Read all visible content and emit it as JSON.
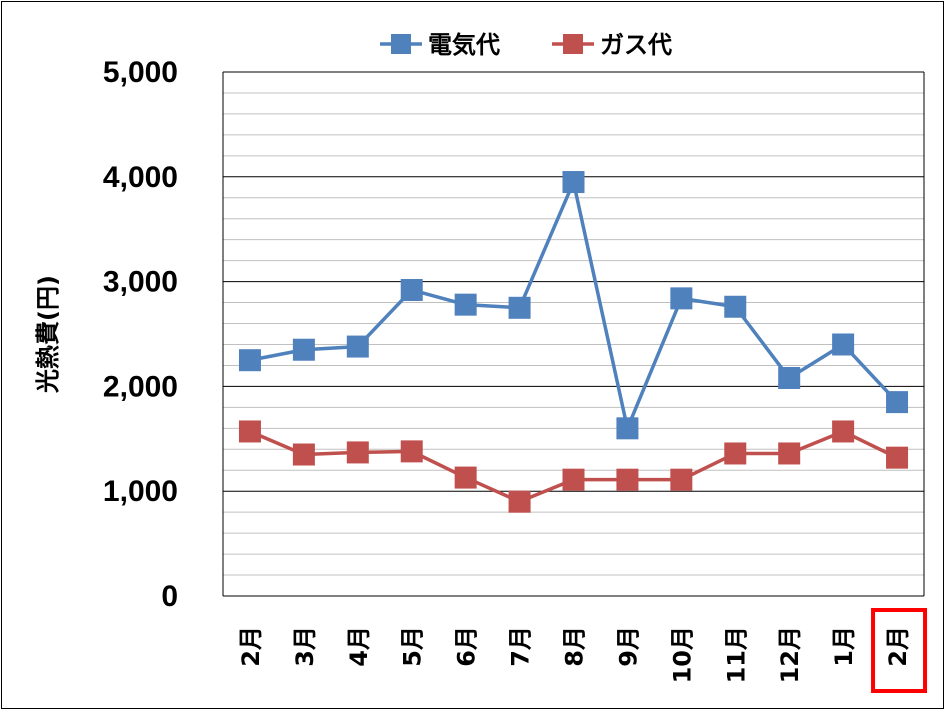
{
  "chart_data": {
    "type": "line",
    "title": "",
    "ylabel": "光熱費(円)",
    "xlabel": "",
    "ylim": [
      0,
      5000
    ],
    "yticks": [
      0,
      1000,
      2000,
      3000,
      4000,
      5000
    ],
    "ytick_labels": [
      "0",
      "1,000",
      "2,000",
      "3,000",
      "4,000",
      "5,000"
    ],
    "categories": [
      "2月",
      "3月",
      "4月",
      "5月",
      "6月",
      "7月",
      "8月",
      "9月",
      "10月",
      "11月",
      "12月",
      "1月",
      "2月"
    ],
    "highlighted_category_index": 12,
    "highlight_color": "#ff0000",
    "grid": "horizontal, major every 1,000 and minor every 200",
    "legend_position": "top",
    "series": [
      {
        "name": "電気代",
        "color": "#4f81bd",
        "values": [
          2250,
          2350,
          2380,
          2920,
          2780,
          2750,
          3950,
          1600,
          2840,
          2760,
          2080,
          2400,
          1850
        ]
      },
      {
        "name": "ガス代",
        "color": "#c0504d",
        "values": [
          1570,
          1350,
          1370,
          1380,
          1130,
          900,
          1110,
          1110,
          1110,
          1360,
          1360,
          1570,
          1320
        ]
      }
    ]
  }
}
